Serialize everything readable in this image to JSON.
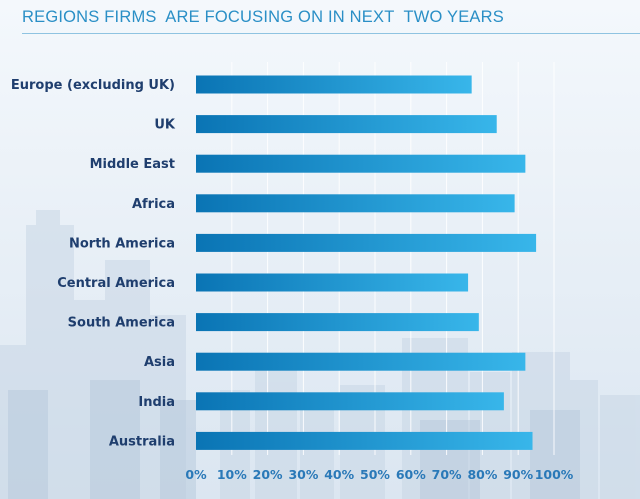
{
  "header": {
    "title": "REGIONS FIRMS  ARE FOCUSING ON IN NEXT  TWO YEARS"
  },
  "chart_data": {
    "type": "bar",
    "orientation": "horizontal",
    "categories": [
      "Europe (excluding UK)",
      "UK",
      "Middle East",
      "Africa",
      "North America",
      "Central America",
      "South America",
      "Asia",
      "India",
      "Australia"
    ],
    "values": [
      77,
      84,
      92,
      89,
      95,
      76,
      79,
      92,
      86,
      94
    ],
    "unit": "%",
    "xlim": [
      0,
      100
    ],
    "ticks": [
      0,
      10,
      20,
      30,
      40,
      50,
      60,
      70,
      80,
      90,
      100
    ],
    "tick_labels": [
      "0%",
      "10%",
      "20%",
      "30%",
      "40%",
      "50%",
      "60%",
      "70%",
      "80%",
      "90%",
      "100%"
    ],
    "grid": true,
    "legend": "none",
    "colors": {
      "bar_start": "#0a74b4",
      "bar_end": "#38b6ea",
      "category_text": "#1f3e6e",
      "tick_text": "#2a79b8",
      "title_text": "#2a8fc6"
    }
  }
}
